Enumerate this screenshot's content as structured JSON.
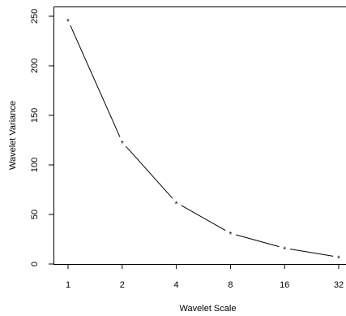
{
  "chart_data": {
    "type": "line",
    "title": "",
    "xlabel": "Wavelet Scale",
    "ylabel": "Wavelet Variance",
    "x_scale": "log2",
    "xlim": [
      1,
      32
    ],
    "ylim": [
      0,
      250
    ],
    "grid": false,
    "legend": "none",
    "x_ticks": [
      "1",
      "2",
      "4",
      "8",
      "16",
      "32"
    ],
    "y_ticks": [
      "0",
      "50",
      "100",
      "150",
      "200",
      "250"
    ],
    "marker": "*",
    "line_color": "#000000",
    "series": [
      {
        "x": [
          1,
          2,
          4,
          8,
          16,
          32
        ],
        "values": [
          246,
          123,
          62,
          31,
          16,
          7
        ]
      }
    ]
  }
}
